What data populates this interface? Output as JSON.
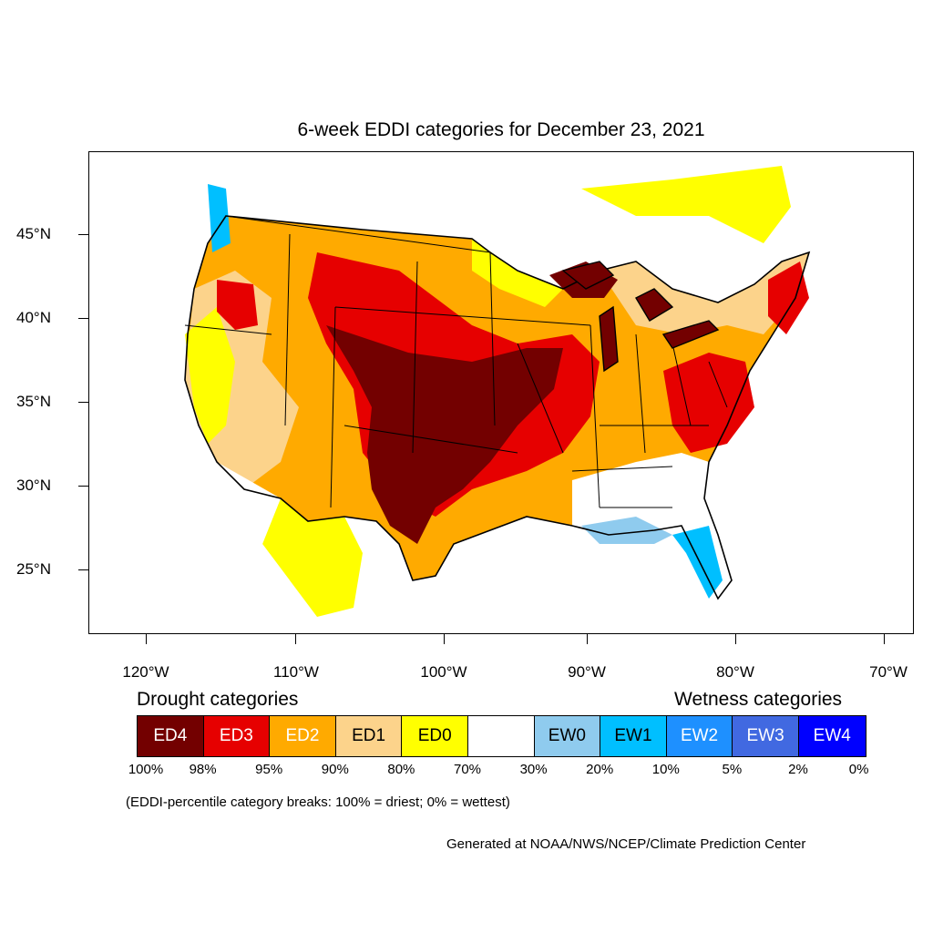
{
  "title": "6-week EDDI categories for December 23, 2021",
  "lat_labels": [
    "45°N",
    "40°N",
    "35°N",
    "30°N",
    "25°N"
  ],
  "lon_labels": [
    "120°W",
    "110°W",
    "100°W",
    "90°W",
    "80°W",
    "70°W"
  ],
  "legend": {
    "drought_heading": "Drought categories",
    "wetness_heading": "Wetness categories",
    "categories": [
      {
        "label": "ED4",
        "color": "#730000",
        "text_color": "#ffffff"
      },
      {
        "label": "ED3",
        "color": "#e60000",
        "text_color": "#ffffff"
      },
      {
        "label": "ED2",
        "color": "#ffaa00",
        "text_color": "#ffffff"
      },
      {
        "label": "ED1",
        "color": "#fcd38b",
        "text_color": "#000000"
      },
      {
        "label": "ED0",
        "color": "#ffff00",
        "text_color": "#000000"
      },
      {
        "label": "",
        "color": "#ffffff",
        "text_color": "#000000"
      },
      {
        "label": "EW0",
        "color": "#8fcbee",
        "text_color": "#000000"
      },
      {
        "label": "EW1",
        "color": "#00bfff",
        "text_color": "#000000"
      },
      {
        "label": "EW2",
        "color": "#1e90ff",
        "text_color": "#ffffff"
      },
      {
        "label": "EW3",
        "color": "#4169e1",
        "text_color": "#ffffff"
      },
      {
        "label": "EW4",
        "color": "#0000ff",
        "text_color": "#ffffff"
      }
    ],
    "breaks": [
      "100%",
      "98%",
      "95%",
      "90%",
      "80%",
      "70%",
      "30%",
      "20%",
      "10%",
      "5%",
      "2%",
      "0%"
    ]
  },
  "note": "(EDDI-percentile category breaks: 100% = driest; 0% = wettest)",
  "credit": "Generated at NOAA/NWS/NCEP/Climate Prediction Center"
}
